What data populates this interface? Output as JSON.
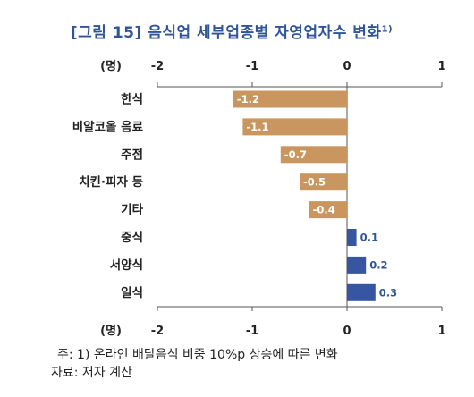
{
  "title": "[그림 15] 음식업 세부업종별 자영업자수 변화",
  "title_sup": "1)",
  "chart_data": {
    "type": "bar",
    "orientation": "horizontal",
    "unit_label": "(명)",
    "categories": [
      "한식",
      "비알코올 음료",
      "주점",
      "치킨·피자 등",
      "기타",
      "중식",
      "서양식",
      "일식"
    ],
    "values": [
      -1.2,
      -1.1,
      -0.7,
      -0.5,
      -0.4,
      0.1,
      0.2,
      0.3
    ],
    "value_labels": [
      "-1.2",
      "-1.1",
      "-0.7",
      "-0.5",
      "-0.4",
      "0.1",
      "0.2",
      "0.3"
    ],
    "xlim": [
      -2,
      1
    ],
    "ticks": [
      -2,
      -1,
      0,
      1
    ],
    "tick_labels": [
      "-2",
      "-1",
      "0",
      "1"
    ],
    "negative_color": "#c9965f",
    "positive_color": "#3656a3",
    "negative_label_color": "#ffffff",
    "positive_label_color": "#2f5597",
    "axis_position": "top-and-bottom"
  },
  "footnote": "주: 1) 온라인 배달음식 비중 10%p 상승에 따른 변화",
  "source": "자료: 저자 계산"
}
